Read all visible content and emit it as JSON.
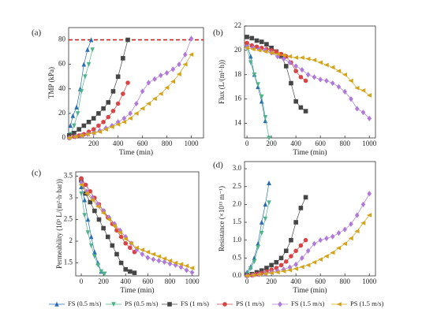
{
  "legend": [
    {
      "name": "FS (0.5 m/s)",
      "color": "#2b6cb3",
      "marker": "triangle-up"
    },
    {
      "name": "PS (0.5 m/s)",
      "color": "#4fb38a",
      "marker": "triangle-down"
    },
    {
      "name": "FS (1 m/s)",
      "color": "#454545",
      "marker": "square"
    },
    {
      "name": "PS (1 m/s)",
      "color": "#d94444",
      "marker": "circle"
    },
    {
      "name": "FS (1.5 m/s)",
      "color": "#b07ad8",
      "marker": "diamond"
    },
    {
      "name": "PS (1.5 m/s)",
      "color": "#d4a317",
      "marker": "triangle-left"
    }
  ],
  "chart_data": [
    {
      "type": "line",
      "label": "(a)",
      "y_label": "TMP (kPa)",
      "x_label": "Time (min)",
      "xlim": [
        -5,
        1100
      ],
      "ylim": [
        0,
        90
      ],
      "xticks": [
        200,
        400,
        600,
        800,
        1000
      ],
      "yticks": [
        0,
        20,
        40,
        60,
        80
      ],
      "hline": {
        "value": 80,
        "color": "#cc2222",
        "style": "dashed"
      },
      "series": [
        {
          "x": [
            10,
            30,
            60,
            90,
            120,
            150,
            180
          ],
          "values": [
            10,
            18,
            25,
            40,
            60,
            72,
            80
          ]
        },
        {
          "x": [
            10,
            40,
            70,
            100,
            130,
            160,
            190
          ],
          "values": [
            3,
            10,
            20,
            38,
            50,
            60,
            72
          ]
        },
        {
          "x": [
            0,
            40,
            80,
            120,
            160,
            200,
            240,
            280,
            320,
            360,
            400,
            440,
            480
          ],
          "values": [
            2,
            4,
            7,
            10,
            13,
            16,
            20,
            24,
            29,
            38,
            50,
            65,
            80
          ]
        },
        {
          "x": [
            0,
            40,
            80,
            120,
            160,
            200,
            240,
            280,
            320,
            360,
            400,
            440,
            480
          ],
          "values": [
            0,
            1,
            2,
            3,
            5,
            7,
            10,
            13,
            17,
            22,
            28,
            36,
            45
          ]
        },
        {
          "x": [
            0,
            50,
            100,
            150,
            200,
            250,
            300,
            350,
            400,
            450,
            500,
            550,
            600,
            650,
            700,
            750,
            800,
            850,
            900,
            950,
            1000
          ],
          "values": [
            0,
            1,
            2,
            3,
            4,
            6,
            8,
            10,
            13,
            16,
            20,
            28,
            38,
            45,
            48,
            51,
            53,
            56,
            60,
            68,
            81
          ]
        },
        {
          "x": [
            0,
            50,
            100,
            150,
            200,
            250,
            300,
            350,
            400,
            450,
            500,
            550,
            600,
            650,
            700,
            750,
            800,
            850,
            900,
            950,
            1000
          ],
          "values": [
            0,
            1,
            2,
            3,
            4,
            5,
            7,
            9,
            11,
            13,
            16,
            20,
            24,
            28,
            32,
            36,
            41,
            46,
            52,
            60,
            68
          ]
        }
      ]
    },
    {
      "type": "line",
      "label": "(b)",
      "y_label": "Flux (L/(m²·h))",
      "x_label": "Time (min)",
      "xlim": [
        -20,
        1050
      ],
      "ylim": [
        12.8,
        22
      ],
      "xticks": [
        0,
        200,
        400,
        600,
        800,
        1000
      ],
      "yticks": [
        14,
        16,
        18,
        20,
        22
      ],
      "series": [
        {
          "x": [
            0,
            30,
            60,
            90,
            120,
            150
          ],
          "values": [
            20.5,
            19.5,
            18.0,
            17.0,
            15.8,
            14.2
          ]
        },
        {
          "x": [
            0,
            30,
            60,
            90,
            120,
            150,
            180
          ],
          "values": [
            20.2,
            19.0,
            18.0,
            17.2,
            16.2,
            14.5,
            12.8
          ]
        },
        {
          "x": [
            0,
            40,
            80,
            120,
            160,
            200,
            240,
            280,
            320,
            360,
            400,
            440,
            480
          ],
          "values": [
            21.1,
            21.0,
            20.8,
            20.7,
            20.5,
            20.2,
            19.9,
            19.5,
            18.7,
            17.3,
            15.8,
            15.3,
            15.0
          ]
        },
        {
          "x": [
            0,
            40,
            80,
            120,
            160,
            200,
            240,
            280,
            320,
            360,
            400,
            440,
            480
          ],
          "values": [
            20.6,
            20.4,
            20.3,
            20.2,
            20.1,
            20.0,
            19.9,
            19.7,
            19.5,
            19.0,
            18.3,
            17.8,
            17.5
          ]
        },
        {
          "x": [
            0,
            50,
            100,
            150,
            200,
            250,
            300,
            350,
            400,
            450,
            500,
            550,
            600,
            650,
            700,
            750,
            800,
            850,
            900,
            950,
            1000
          ],
          "values": [
            20.3,
            20.2,
            20.1,
            20.0,
            19.8,
            19.5,
            19.3,
            19.0,
            18.7,
            18.4,
            18.0,
            17.8,
            17.6,
            17.5,
            17.3,
            17.0,
            16.6,
            16.0,
            15.2,
            14.9,
            14.4
          ]
        },
        {
          "x": [
            0,
            50,
            100,
            150,
            200,
            250,
            300,
            350,
            400,
            450,
            500,
            550,
            600,
            650,
            700,
            750,
            800,
            850,
            900,
            950,
            1000
          ],
          "values": [
            20.2,
            20.1,
            20.0,
            19.9,
            19.8,
            19.7,
            19.6,
            19.5,
            19.4,
            19.4,
            19.3,
            19.2,
            19.0,
            18.8,
            18.6,
            18.3,
            18.0,
            17.5,
            16.9,
            16.7,
            16.3
          ]
        }
      ]
    },
    {
      "type": "line",
      "label": "(c)",
      "y_label": "Permeability (10³ L/(m²·h·bar))",
      "x_label": "Time (min)",
      "xlim": [
        -50,
        1060
      ],
      "ylim": [
        1.2,
        3.6
      ],
      "xticks": [
        0,
        200,
        400,
        600,
        800,
        1000
      ],
      "yticks": [
        1.5,
        2.0,
        2.5,
        3.0,
        3.5
      ],
      "series": [
        {
          "x": [
            0,
            30,
            60,
            90,
            120,
            150,
            180
          ],
          "values": [
            3.25,
            2.95,
            2.5,
            2.1,
            1.75,
            1.5,
            1.3
          ]
        },
        {
          "x": [
            0,
            30,
            60,
            90,
            120,
            150,
            180,
            210
          ],
          "values": [
            3.1,
            2.6,
            2.2,
            1.9,
            1.65,
            1.45,
            1.3,
            1.25
          ]
        },
        {
          "x": [
            0,
            40,
            80,
            120,
            160,
            200,
            240,
            280,
            320,
            360,
            400,
            440,
            480
          ],
          "values": [
            3.4,
            3.1,
            2.9,
            2.7,
            2.5,
            2.3,
            2.1,
            1.9,
            1.7,
            1.5,
            1.35,
            1.3,
            1.27
          ]
        },
        {
          "x": [
            0,
            40,
            80,
            120,
            160,
            200,
            240,
            280,
            320,
            360,
            400,
            440,
            480
          ],
          "values": [
            3.45,
            3.3,
            3.15,
            3.0,
            2.85,
            2.7,
            2.55,
            2.4,
            2.25,
            2.1,
            1.95,
            1.85,
            1.75
          ]
        },
        {
          "x": [
            0,
            50,
            100,
            150,
            200,
            250,
            300,
            350,
            400,
            450,
            500,
            550,
            600,
            650,
            700,
            750,
            800,
            850,
            900,
            950,
            1000
          ],
          "values": [
            3.35,
            3.15,
            3.0,
            2.85,
            2.7,
            2.55,
            2.4,
            2.25,
            2.1,
            1.95,
            1.8,
            1.7,
            1.62,
            1.58,
            1.55,
            1.52,
            1.48,
            1.45,
            1.4,
            1.33,
            1.28
          ]
        },
        {
          "x": [
            0,
            50,
            100,
            150,
            200,
            250,
            300,
            350,
            400,
            450,
            500,
            550,
            600,
            650,
            700,
            750,
            800,
            850,
            900,
            950,
            1000
          ],
          "values": [
            3.3,
            3.1,
            2.95,
            2.8,
            2.65,
            2.5,
            2.35,
            2.2,
            2.05,
            1.95,
            1.85,
            1.8,
            1.75,
            1.7,
            1.65,
            1.6,
            1.55,
            1.5,
            1.47,
            1.43,
            1.38
          ]
        }
      ]
    },
    {
      "type": "line",
      "label": "(d)",
      "y_label": "Resistance (×10¹³ m⁻¹)",
      "x_label": "Time (min)",
      "xlim": [
        -20,
        1050
      ],
      "ylim": [
        0,
        3.2
      ],
      "xticks": [
        0,
        200,
        400,
        600,
        800,
        1000
      ],
      "yticks": [
        {
          "value": 0,
          "label": "0.0"
        },
        0.5,
        {
          "value": 1,
          "label": "1.0"
        },
        1.5,
        {
          "value": 2,
          "label": "2.0"
        },
        2.5,
        {
          "value": 3,
          "label": "3.0"
        }
      ],
      "series": [
        {
          "x": [
            0,
            30,
            60,
            90,
            120,
            150,
            180
          ],
          "values": [
            0.1,
            0.25,
            0.5,
            0.9,
            1.5,
            2.0,
            2.6
          ]
        },
        {
          "x": [
            0,
            30,
            60,
            90,
            120,
            150,
            180
          ],
          "values": [
            0.05,
            0.2,
            0.4,
            0.8,
            1.2,
            1.6,
            2.05
          ]
        },
        {
          "x": [
            0,
            40,
            80,
            120,
            160,
            200,
            240,
            280,
            320,
            360,
            400,
            440,
            480
          ],
          "values": [
            0.02,
            0.05,
            0.1,
            0.15,
            0.22,
            0.3,
            0.38,
            0.5,
            0.7,
            1.0,
            1.5,
            1.9,
            2.2
          ]
        },
        {
          "x": [
            0,
            40,
            80,
            120,
            160,
            200,
            240,
            280,
            320,
            360,
            400,
            440,
            480
          ],
          "values": [
            0,
            0.02,
            0.05,
            0.08,
            0.12,
            0.17,
            0.22,
            0.3,
            0.4,
            0.55,
            0.7,
            0.85,
            1.0
          ]
        },
        {
          "x": [
            0,
            50,
            100,
            150,
            200,
            250,
            300,
            350,
            400,
            450,
            500,
            550,
            600,
            650,
            700,
            750,
            800,
            850,
            900,
            950,
            1000
          ],
          "values": [
            0,
            0.02,
            0.04,
            0.07,
            0.1,
            0.14,
            0.18,
            0.24,
            0.32,
            0.5,
            0.7,
            0.9,
            1.0,
            1.05,
            1.1,
            1.2,
            1.3,
            1.45,
            1.7,
            2.0,
            2.3
          ]
        },
        {
          "x": [
            0,
            50,
            100,
            150,
            200,
            250,
            300,
            350,
            400,
            450,
            500,
            550,
            600,
            650,
            700,
            750,
            800,
            850,
            900,
            950,
            1000
          ],
          "values": [
            0,
            0.02,
            0.04,
            0.06,
            0.08,
            0.1,
            0.13,
            0.16,
            0.2,
            0.25,
            0.3,
            0.38,
            0.46,
            0.55,
            0.65,
            0.78,
            0.9,
            1.05,
            1.25,
            1.48,
            1.7
          ]
        }
      ]
    }
  ]
}
